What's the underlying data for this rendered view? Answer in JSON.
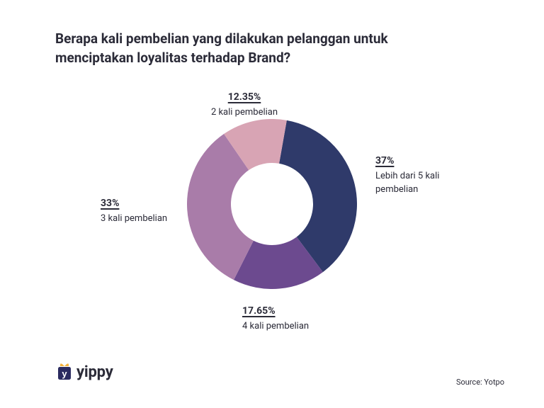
{
  "title": "Berapa kali pembelian yang dilakukan pelanggan untuk menciptakan loyalitas terhadap Brand?",
  "chart": {
    "type": "donut",
    "background_color": "#ffffff",
    "outer_radius": 120,
    "inner_radius": 58,
    "start_angle_deg": -80,
    "slices": [
      {
        "id": "s1",
        "value": 37.0,
        "pct_label": "37%",
        "desc": "Lebih dari 5 kali pembelian",
        "color": "#2f3a6a"
      },
      {
        "id": "s2",
        "value": 17.65,
        "pct_label": "17.65%",
        "desc": "4 kali pembelian",
        "color": "#6c4a8f"
      },
      {
        "id": "s3",
        "value": 33.0,
        "pct_label": "33%",
        "desc": "3 kali pembelian",
        "color": "#a97ca9"
      },
      {
        "id": "s4",
        "value": 12.35,
        "pct_label": "12.35%",
        "desc": "2 kali pembelian",
        "color": "#d8a4b4"
      }
    ],
    "label_fontsize": 14,
    "label_pct_fontweight": 700,
    "label_desc_fontsize": 13,
    "text_color": "#2b2b38"
  },
  "logo": {
    "text": "yippy",
    "icon_box_color": "#2b2b60",
    "icon_ribbon_color": "#f4b23d",
    "icon_letter": "y",
    "icon_letter_color": "#ffffff"
  },
  "source": "Source: Yotpo"
}
